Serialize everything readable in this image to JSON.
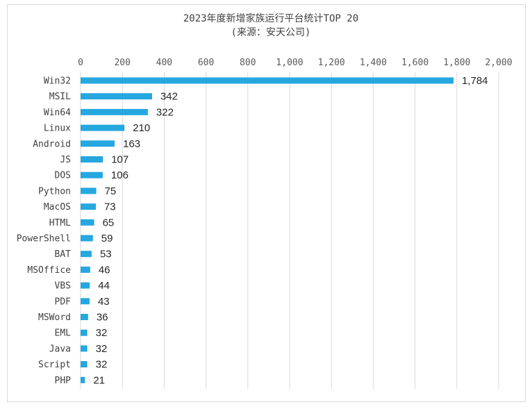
{
  "chart_data": {
    "type": "bar",
    "orientation": "horizontal",
    "title": "2023年度新增家族运行平台统计TOP 20",
    "subtitle": "(来源：安天公司)",
    "categories": [
      "Win32",
      "MSIL",
      "Win64",
      "Linux",
      "Android",
      "JS",
      "DOS",
      "Python",
      "MacOS",
      "HTML",
      "PowerShell",
      "BAT",
      "MSOffice",
      "VBS",
      "PDF",
      "MSWord",
      "EML",
      "Java",
      "Script",
      "PHP"
    ],
    "values": [
      1784,
      342,
      322,
      210,
      163,
      107,
      106,
      75,
      73,
      65,
      59,
      53,
      46,
      44,
      43,
      36,
      32,
      32,
      32,
      21
    ],
    "value_labels": [
      "1,784",
      "342",
      "322",
      "210",
      "163",
      "107",
      "106",
      "75",
      "73",
      "65",
      "59",
      "53",
      "46",
      "44",
      "43",
      "36",
      "32",
      "32",
      "32",
      "21"
    ],
    "xlim": [
      0,
      2000
    ],
    "x_ticks": [
      0,
      200,
      400,
      600,
      800,
      1000,
      1200,
      1400,
      1600,
      1800,
      2000
    ],
    "x_tick_labels": [
      "0",
      "200",
      "400",
      "600",
      "800",
      "1,000",
      "1,200",
      "1,400",
      "1,600",
      "1,800",
      "2,000"
    ],
    "x_axis_position": "top",
    "grid": true,
    "bar_color": "#25a7df",
    "grid_color": "#d9d9d9"
  }
}
